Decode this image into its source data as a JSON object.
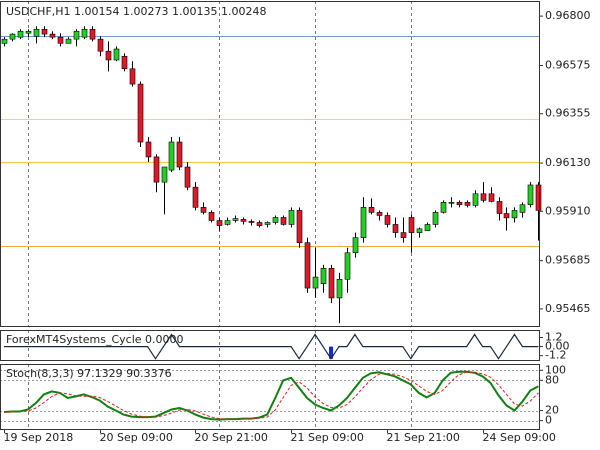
{
  "chart_data": [
    {
      "type": "candlestick",
      "title": "USDCHF,H1  1.00154 1.00273 1.00135 1.00248",
      "up_color": "#22d022",
      "down_color": "#e01828",
      "xlim": [
        -0.5,
        67.2
      ],
      "ylim": [
        0.95387,
        0.96869
      ],
      "yticks": [
        {
          "value": 0.968,
          "label": "0.96800"
        },
        {
          "value": 0.96575,
          "label": "0.96575"
        },
        {
          "value": 0.96355,
          "label": "0.96355"
        },
        {
          "value": 0.9613,
          "label": "0.96130"
        },
        {
          "value": 0.9591,
          "label": "0.95910"
        },
        {
          "value": 0.95685,
          "label": "0.95685"
        },
        {
          "value": 0.95465,
          "label": "0.95465"
        }
      ],
      "hlines": [
        {
          "value": 0.96708,
          "color": "#7b96d8"
        },
        {
          "value": 0.96332,
          "color": "#eee040"
        },
        {
          "value": 0.96135,
          "color": "#f0c84a"
        },
        {
          "value": 0.95754,
          "color": "#f0a830"
        }
      ],
      "separators": [
        3,
        27,
        39,
        51
      ],
      "candles": [
        [
          0.96676,
          0.96704,
          0.96662,
          0.96695
        ],
        [
          0.96695,
          0.96722,
          0.96685,
          0.96718
        ],
        [
          0.96704,
          0.9674,
          0.96695,
          0.96731
        ],
        [
          0.96722,
          0.9674,
          0.96704,
          0.96731
        ],
        [
          0.96708,
          0.96754,
          0.96676,
          0.9674
        ],
        [
          0.9674,
          0.96754,
          0.96704,
          0.96718
        ],
        [
          0.96718,
          0.96731,
          0.96695,
          0.96704
        ],
        [
          0.96704,
          0.96722,
          0.96662,
          0.96676
        ],
        [
          0.96676,
          0.96704,
          0.96676,
          0.96695
        ],
        [
          0.96695,
          0.9674,
          0.96662,
          0.96731
        ],
        [
          0.96704,
          0.96754,
          0.96695,
          0.9674
        ],
        [
          0.9674,
          0.96754,
          0.96685,
          0.96695
        ],
        [
          0.96695,
          0.96708,
          0.96617,
          0.9664
        ],
        [
          0.9664,
          0.96685,
          0.96548,
          0.966
        ],
        [
          0.966,
          0.96662,
          0.96594,
          0.9665
        ],
        [
          0.96617,
          0.9663,
          0.96548,
          0.9656
        ],
        [
          0.9656,
          0.96594,
          0.96479,
          0.9649
        ],
        [
          0.9649,
          0.96502,
          0.96203,
          0.96226
        ],
        [
          0.96226,
          0.96249,
          0.96135,
          0.96158
        ],
        [
          0.96158,
          0.9617,
          0.95997,
          0.96043
        ],
        [
          0.96043,
          0.96112,
          0.95896,
          0.96112
        ],
        [
          0.96098,
          0.96249,
          0.96089,
          0.96226
        ],
        [
          0.96226,
          0.96249,
          0.96098,
          0.96112
        ],
        [
          0.96112,
          0.96135,
          0.96006,
          0.9602
        ],
        [
          0.9602,
          0.96043,
          0.95914,
          0.95928
        ],
        [
          0.95928,
          0.95951,
          0.95896,
          0.95905
        ],
        [
          0.95905,
          0.95914,
          0.95859,
          0.95868
        ],
        [
          0.95868,
          0.95882,
          0.95822,
          0.95845
        ],
        [
          0.9585,
          0.95882,
          0.95845,
          0.95868
        ],
        [
          0.95868,
          0.95891,
          0.95859,
          0.95877
        ],
        [
          0.95873,
          0.95882,
          0.9585,
          0.95864
        ],
        [
          0.95864,
          0.95873,
          0.95845,
          0.95859
        ],
        [
          0.95859,
          0.95868,
          0.95836,
          0.95845
        ],
        [
          0.9585,
          0.95864,
          0.95836,
          0.95859
        ],
        [
          0.95859,
          0.95891,
          0.9585,
          0.95882
        ],
        [
          0.95882,
          0.95891,
          0.95845,
          0.9585
        ],
        [
          0.9585,
          0.95928,
          0.95836,
          0.95914
        ],
        [
          0.95914,
          0.95928,
          0.95744,
          0.95767
        ],
        [
          0.95767,
          0.9579,
          0.95538,
          0.9556
        ],
        [
          0.9556,
          0.95744,
          0.95515,
          0.9561
        ],
        [
          0.9558,
          0.95666,
          0.95538,
          0.9565
        ],
        [
          0.9565,
          0.95666,
          0.95492,
          0.95515
        ],
        [
          0.95515,
          0.9563,
          0.954,
          0.956
        ],
        [
          0.956,
          0.95744,
          0.95538,
          0.95721
        ],
        [
          0.95721,
          0.95813,
          0.95699,
          0.9579
        ],
        [
          0.9579,
          0.95974,
          0.95767,
          0.95928
        ],
        [
          0.95928,
          0.95969,
          0.95896,
          0.95905
        ],
        [
          0.95905,
          0.95914,
          0.95868,
          0.95891
        ],
        [
          0.95891,
          0.95905,
          0.95836,
          0.9585
        ],
        [
          0.9585,
          0.95882,
          0.9579,
          0.95813
        ],
        [
          0.95813,
          0.95882,
          0.95767,
          0.9579
        ],
        [
          0.95882,
          0.95896,
          0.95721,
          0.95813
        ],
        [
          0.95813,
          0.95836,
          0.9579,
          0.9583
        ],
        [
          0.95822,
          0.95859,
          0.95822,
          0.9585
        ],
        [
          0.9585,
          0.95914,
          0.95836,
          0.95905
        ],
        [
          0.95905,
          0.9596,
          0.959,
          0.95951
        ],
        [
          0.95951,
          0.95974,
          0.95928,
          0.95951
        ],
        [
          0.95951,
          0.9596,
          0.95928,
          0.9594
        ],
        [
          0.95951,
          0.9596,
          0.95928,
          0.95937
        ],
        [
          0.95937,
          0.96006,
          0.95928,
          0.9599
        ],
        [
          0.9599,
          0.96043,
          0.95951,
          0.9596
        ],
        [
          0.9599,
          0.9602,
          0.95951,
          0.95955
        ],
        [
          0.95955,
          0.95974,
          0.95868,
          0.959
        ],
        [
          0.959,
          0.95928,
          0.95822,
          0.9588
        ],
        [
          0.9588,
          0.95928,
          0.95859,
          0.95914
        ],
        [
          0.95905,
          0.95951,
          0.95882,
          0.9594
        ],
        [
          0.9594,
          0.96043,
          0.95928,
          0.9603
        ],
        [
          0.9603,
          0.96043,
          0.95777,
          0.95914
        ]
      ]
    },
    {
      "type": "line",
      "title": "ForexMT4Systems_Cycle 0.0000",
      "ylim": [
        -1.77,
        2.19
      ],
      "yticks": [
        1.2,
        {
          "value": 0,
          "label": "0.00"
        },
        -1.2
      ],
      "color": "#1a2a3a",
      "values": [
        0,
        0,
        0,
        0,
        0,
        0,
        0,
        0,
        0,
        0,
        0,
        0,
        0,
        0,
        0,
        0,
        0,
        0,
        0,
        -1.6,
        0,
        1.6,
        0,
        0,
        0,
        0,
        0,
        0,
        0,
        0,
        0,
        0,
        0,
        0,
        0,
        0,
        0,
        -1.6,
        0,
        1.6,
        0,
        -1.6,
        0,
        0,
        1.6,
        0,
        0,
        0,
        0,
        0,
        0,
        -1.6,
        0,
        0,
        0,
        0,
        0,
        0,
        0,
        1.6,
        0,
        0,
        -1.6,
        0,
        1.6,
        0,
        0,
        0
      ],
      "histogram": {
        "index": 41,
        "value": -1.6,
        "color": "#1428e0"
      }
    },
    {
      "type": "line",
      "title": "Stoch(8,3,3) 97.1329 90.3376",
      "ylim": [
        -16.7,
        112.5
      ],
      "yticks": [
        100,
        80,
        20,
        0
      ],
      "xticks": [
        {
          "value": 0,
          "label": "19 Sep 2018"
        },
        {
          "value": 12,
          "label": "20 Sep 09:00"
        },
        {
          "value": 24,
          "label": "20 Sep 21:00"
        },
        {
          "value": 36,
          "label": "21 Sep 09:00"
        },
        {
          "value": 48,
          "label": "21 Sep 21:00"
        },
        {
          "value": 60,
          "label": "24 Sep 09:00"
        }
      ],
      "series": [
        {
          "color": "#108010",
          "dash": false,
          "values": [
            17,
            18,
            18,
            22,
            35,
            52,
            58,
            55,
            45,
            48,
            52,
            47,
            40,
            28,
            20,
            12,
            8,
            7,
            7,
            8,
            15,
            22,
            25,
            20,
            12,
            6,
            3,
            2,
            3,
            3,
            4,
            4,
            6,
            12,
            45,
            80,
            85,
            65,
            45,
            32,
            25,
            20,
            30,
            45,
            65,
            85,
            94,
            96,
            92,
            88,
            80,
            72,
            55,
            46,
            55,
            80,
            95,
            97,
            97,
            95,
            88,
            75,
            50,
            30,
            20,
            38,
            60,
            68
          ]
        },
        {
          "color": "#e02020",
          "dash": true,
          "values": [
            17,
            17,
            18,
            19,
            25,
            36,
            48,
            55,
            53,
            49,
            48,
            49,
            46,
            38,
            29,
            20,
            13,
            9,
            7,
            7,
            10,
            15,
            21,
            22,
            19,
            13,
            7,
            4,
            3,
            3,
            3,
            4,
            5,
            7,
            21,
            46,
            70,
            77,
            65,
            47,
            34,
            26,
            25,
            32,
            47,
            65,
            81,
            92,
            94,
            92,
            87,
            80,
            69,
            58,
            52,
            60,
            77,
            91,
            96,
            96,
            93,
            86,
            71,
            52,
            33,
            29,
            39,
            55
          ]
        }
      ]
    }
  ]
}
